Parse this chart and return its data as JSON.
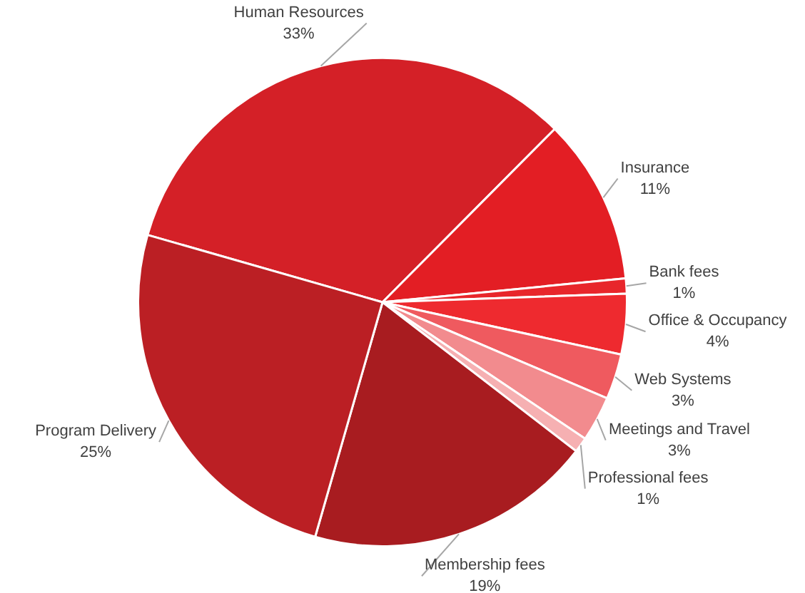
{
  "chart_data": {
    "type": "pie",
    "categories": [
      "Human Resources",
      "Insurance",
      "Bank fees",
      "Office & Occupancy",
      "Web Systems",
      "Meetings and Travel",
      "Professional fees",
      "Membership fees",
      "Program Delivery"
    ],
    "values": [
      33,
      11,
      1,
      4,
      3,
      3,
      1,
      19,
      25
    ],
    "value_labels": [
      "33%",
      "11%",
      "1%",
      "4%",
      "3%",
      "3%",
      "1%",
      "19%",
      "25%"
    ],
    "colors": [
      "#d42027",
      "#e31e24",
      "#e8262b",
      "#ee2a2f",
      "#ef5a5f",
      "#f28b8e",
      "#f6b0b2",
      "#a81c20",
      "#bb1f24"
    ],
    "legend": false
  }
}
